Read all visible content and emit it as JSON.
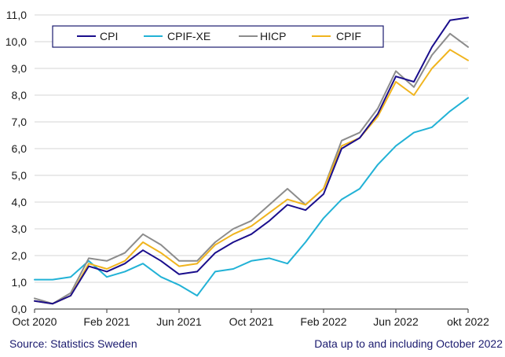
{
  "footer": {
    "source": "Source: Statistics Sweden",
    "note": "Data up to and including October 2022"
  },
  "chart_data": {
    "type": "line",
    "title": "",
    "xlabel": "",
    "ylabel": "",
    "ylim": [
      0,
      11
    ],
    "y_ticks": [
      "0,0",
      "1,0",
      "2,0",
      "3,0",
      "4,0",
      "5,0",
      "6,0",
      "7,0",
      "8,0",
      "9,0",
      "10,0",
      "11,0"
    ],
    "x_ticks": [
      {
        "label": "Oct 2020",
        "index": 0
      },
      {
        "label": "Feb 2021",
        "index": 4
      },
      {
        "label": "Jun 2021",
        "index": 8
      },
      {
        "label": "Oct 2021",
        "index": 12
      },
      {
        "label": "Feb 2022",
        "index": 16
      },
      {
        "label": "Jun 2022",
        "index": 20
      },
      {
        "label": "okt 2022",
        "index": 24
      }
    ],
    "grid": "horizontal",
    "legend_placement": "top-left",
    "x": [
      "2020-10",
      "2020-11",
      "2020-12",
      "2021-01",
      "2021-02",
      "2021-03",
      "2021-04",
      "2021-05",
      "2021-06",
      "2021-07",
      "2021-08",
      "2021-09",
      "2021-10",
      "2021-11",
      "2021-12",
      "2022-01",
      "2022-02",
      "2022-03",
      "2022-04",
      "2022-05",
      "2022-06",
      "2022-07",
      "2022-08",
      "2022-09",
      "2022-10"
    ],
    "series": [
      {
        "name": "CPI",
        "color": "#1a0e8c",
        "values": [
          0.3,
          0.2,
          0.5,
          1.6,
          1.4,
          1.7,
          2.2,
          1.8,
          1.3,
          1.4,
          2.1,
          2.5,
          2.8,
          3.3,
          3.9,
          3.7,
          4.3,
          6.0,
          6.4,
          7.3,
          8.7,
          8.5,
          9.8,
          10.8,
          10.9
        ]
      },
      {
        "name": "CPIF-XE",
        "color": "#22b2d6",
        "values": [
          1.1,
          1.1,
          1.2,
          1.8,
          1.2,
          1.4,
          1.7,
          1.2,
          0.9,
          0.5,
          1.4,
          1.5,
          1.8,
          1.9,
          1.7,
          2.5,
          3.4,
          4.1,
          4.5,
          5.4,
          6.1,
          6.6,
          6.8,
          7.4,
          7.9
        ]
      },
      {
        "name": "HICP",
        "color": "#8c8c8c",
        "values": [
          0.4,
          0.2,
          0.6,
          1.9,
          1.8,
          2.1,
          2.8,
          2.4,
          1.8,
          1.8,
          2.5,
          3.0,
          3.3,
          3.9,
          4.5,
          3.9,
          4.5,
          6.3,
          6.6,
          7.5,
          8.9,
          8.3,
          9.5,
          10.3,
          9.8
        ]
      },
      {
        "name": "CPIF",
        "color": "#f0b41e",
        "values": [
          0.3,
          0.2,
          0.5,
          1.7,
          1.5,
          1.8,
          2.5,
          2.1,
          1.6,
          1.7,
          2.4,
          2.8,
          3.1,
          3.6,
          4.1,
          3.9,
          4.5,
          6.1,
          6.4,
          7.2,
          8.5,
          8.0,
          9.0,
          9.7,
          9.3
        ]
      }
    ]
  }
}
